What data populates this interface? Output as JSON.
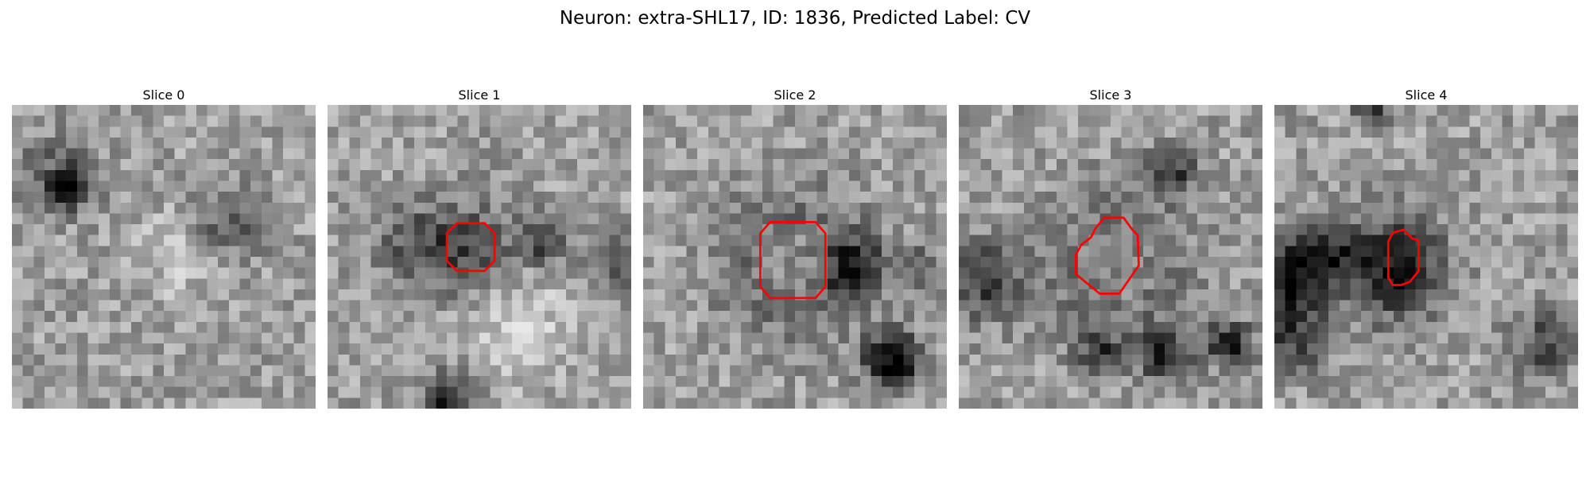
{
  "figure": {
    "title": "Neuron: extra-SHL17, ID: 1836, Predicted Label: CV"
  },
  "panels": [
    {
      "title": "Slice 0",
      "has_contour": false
    },
    {
      "title": "Slice 1",
      "has_contour": true
    },
    {
      "title": "Slice 2",
      "has_contour": true
    },
    {
      "title": "Slice 3",
      "has_contour": true
    },
    {
      "title": "Slice 4",
      "has_contour": true
    }
  ],
  "colors": {
    "contour": "#ff0000",
    "background": "#ffffff"
  },
  "image_style": {
    "colormap": "grayscale",
    "grid": "28x28"
  }
}
